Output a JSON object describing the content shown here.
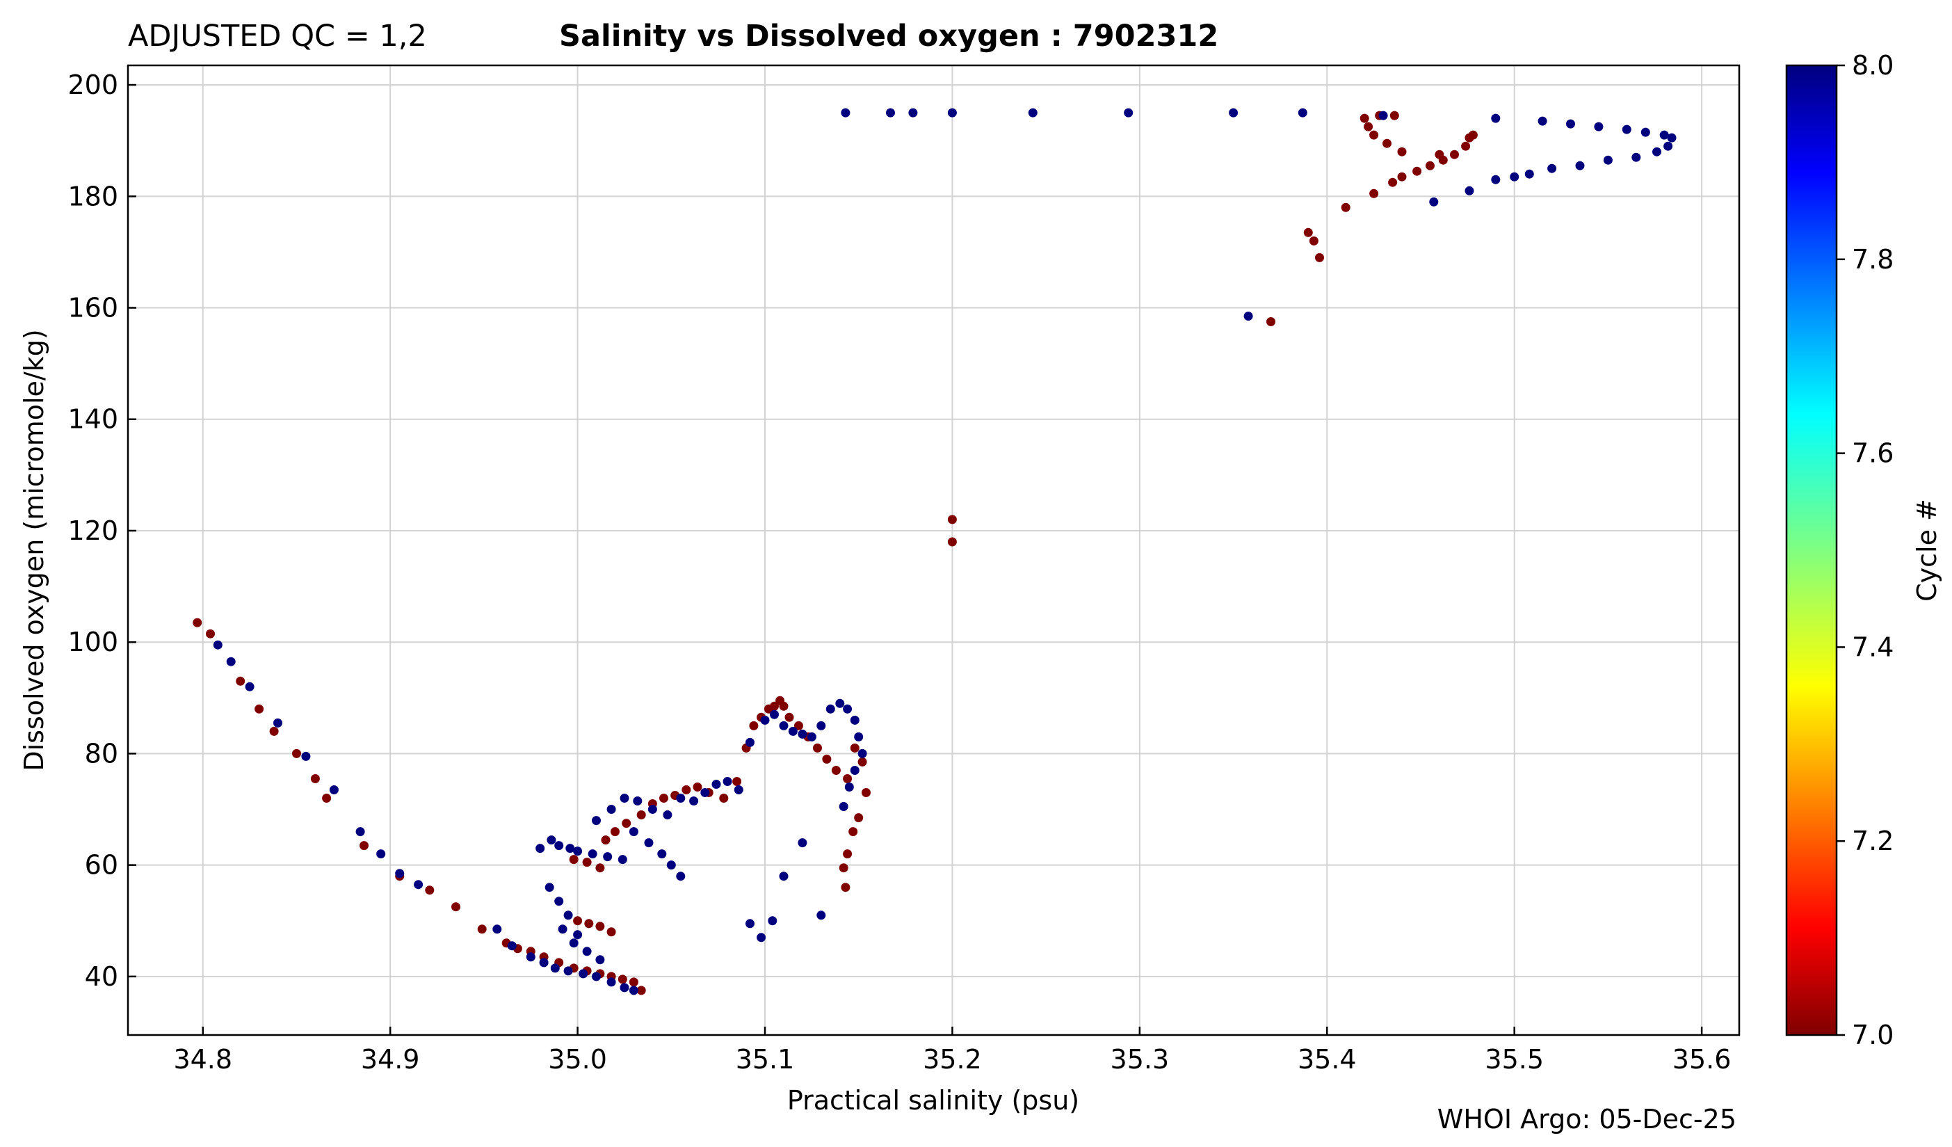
{
  "header": {
    "qc_label": "ADJUSTED QC = 1,2",
    "title": "Salinity vs Dissolved oxygen : 7902312"
  },
  "footer": {
    "credit": "WHOI Argo: 05-Dec-25"
  },
  "colors": {
    "low": "#800000",
    "high": "#00007f",
    "grid": "#d3d3d3"
  },
  "chart_data": {
    "type": "scatter",
    "title": "Salinity vs Dissolved oxygen : 7902312",
    "xlabel": "Practical salinity  (psu)",
    "ylabel": "Dissolved oxygen  (micromole/kg)",
    "xlim": [
      34.76,
      35.62
    ],
    "ylim": [
      29.5,
      203.5
    ],
    "xticks": [
      34.8,
      34.9,
      35.0,
      35.1,
      35.2,
      35.3,
      35.4,
      35.5,
      35.6
    ],
    "xtick_labels": [
      "34.8",
      "34.9",
      "35.0",
      "35.1",
      "35.2",
      "35.3",
      "35.4",
      "35.5",
      "35.6"
    ],
    "yticks": [
      40,
      60,
      80,
      100,
      120,
      140,
      160,
      180,
      200
    ],
    "ytick_labels": [
      "40",
      "60",
      "80",
      "100",
      "120",
      "140",
      "160",
      "180",
      "200"
    ],
    "grid": true,
    "colorbar": {
      "label": "Cycle #",
      "range": [
        7.0,
        8.0
      ],
      "ticks": [
        7.0,
        7.2,
        7.4,
        7.6,
        7.8,
        8.0
      ],
      "tick_labels": [
        "7.0",
        "7.2",
        "7.4",
        "7.6",
        "7.8",
        "8.0"
      ],
      "colormap": "jet"
    },
    "series": [
      {
        "name": "Cycle 7",
        "cycle": 7,
        "x": [
          34.797,
          34.804,
          34.82,
          34.83,
          34.838,
          34.85,
          34.86,
          34.866,
          34.886,
          34.905,
          34.921,
          34.935,
          34.949,
          34.962,
          34.968,
          34.975,
          34.982,
          34.99,
          34.998,
          35.005,
          35.012,
          35.018,
          35.024,
          35.03,
          35.034,
          35.0,
          35.006,
          35.012,
          35.018,
          35.005,
          35.012,
          34.998,
          35.015,
          35.02,
          35.026,
          35.034,
          35.04,
          35.046,
          35.052,
          35.058,
          35.064,
          35.07,
          35.078,
          35.085,
          35.09,
          35.094,
          35.098,
          35.102,
          35.105,
          35.108,
          35.11,
          35.113,
          35.118,
          35.123,
          35.128,
          35.133,
          35.138,
          35.144,
          35.148,
          35.152,
          35.154,
          35.15,
          35.147,
          35.144,
          35.142,
          35.143,
          35.2,
          35.2,
          35.37,
          35.39,
          35.393,
          35.396,
          35.41,
          35.425,
          35.435,
          35.44,
          35.448,
          35.455,
          35.462,
          35.468,
          35.474,
          35.476,
          35.478,
          35.46,
          35.44,
          35.432,
          35.425,
          35.422,
          35.42,
          35.428,
          35.436
        ],
        "y": [
          103.5,
          101.5,
          93,
          88,
          84,
          80,
          75.5,
          72,
          63.5,
          58,
          55.5,
          52.5,
          48.5,
          46,
          45,
          44.5,
          43.5,
          42.5,
          41.5,
          41,
          40.5,
          40,
          39.5,
          39,
          37.5,
          50,
          49.5,
          49,
          48,
          60.5,
          59.5,
          61,
          64.5,
          66,
          67.5,
          69,
          71,
          72,
          72.5,
          73.5,
          74,
          73,
          72,
          75,
          81,
          85,
          86.5,
          88,
          88.5,
          89.5,
          88.5,
          86.5,
          85,
          83,
          81,
          79,
          77,
          75.5,
          81,
          78.5,
          73,
          68.5,
          66,
          62,
          59.5,
          56,
          122,
          118,
          157.5,
          173.5,
          172,
          169,
          178,
          180.5,
          182.5,
          183.5,
          184.5,
          185.5,
          186.5,
          187.5,
          189,
          190.5,
          191,
          187.5,
          188,
          189.5,
          191,
          192.5,
          194,
          194.5,
          194.5
        ],
        "color": "#800000"
      },
      {
        "name": "Cycle 8",
        "cycle": 8,
        "x": [
          34.808,
          34.815,
          34.825,
          34.84,
          34.855,
          34.87,
          34.884,
          34.895,
          34.905,
          34.915,
          34.957,
          34.965,
          34.975,
          34.982,
          34.988,
          34.995,
          35.003,
          35.01,
          35.018,
          35.025,
          35.03,
          34.985,
          34.99,
          34.995,
          35.0,
          34.992,
          34.998,
          35.005,
          35.012,
          34.98,
          34.986,
          34.99,
          34.996,
          35.0,
          35.008,
          35.016,
          35.024,
          35.01,
          35.018,
          35.025,
          35.032,
          35.04,
          35.048,
          35.055,
          35.062,
          35.068,
          35.074,
          35.08,
          35.086,
          35.03,
          35.038,
          35.045,
          35.05,
          35.055,
          35.092,
          35.1,
          35.105,
          35.11,
          35.115,
          35.12,
          35.125,
          35.13,
          35.135,
          35.14,
          35.144,
          35.148,
          35.15,
          35.152,
          35.148,
          35.145,
          35.12,
          35.11,
          35.104,
          35.098,
          35.092,
          35.13,
          35.142,
          35.143,
          35.167,
          35.179,
          35.2,
          35.243,
          35.294,
          35.35,
          35.387,
          35.358,
          35.43,
          35.457,
          35.476,
          35.49,
          35.5,
          35.515,
          35.53,
          35.545,
          35.56,
          35.57,
          35.58,
          35.584,
          35.582,
          35.576,
          35.565,
          35.55,
          35.535,
          35.52,
          35.508,
          35.49
        ],
        "y": [
          99.5,
          96.5,
          92,
          85.5,
          79.5,
          73.5,
          66,
          62,
          58.5,
          56.5,
          48.5,
          45.5,
          43.5,
          42.5,
          41.5,
          41,
          40.5,
          40,
          39,
          38,
          37.5,
          56,
          53.5,
          51,
          47.5,
          48.5,
          46,
          44.5,
          43,
          63,
          64.5,
          63.5,
          63,
          62.5,
          62,
          61.5,
          61,
          68,
          70,
          72,
          71.5,
          70,
          69,
          72,
          71.5,
          73,
          74.5,
          75,
          73.5,
          66,
          64,
          62,
          60,
          58,
          82,
          86,
          87,
          85,
          84,
          83.5,
          83,
          85,
          88,
          89,
          88,
          86,
          83,
          80,
          77,
          74,
          64,
          58,
          50,
          47,
          49.5,
          51,
          70.5,
          195,
          195,
          195,
          195,
          195,
          195,
          195,
          195,
          158.5,
          194.5,
          179,
          181,
          194,
          183.5,
          193.5,
          193,
          192.5,
          192,
          191.5,
          191,
          190.5,
          189,
          188,
          187,
          186.5,
          185.5,
          185,
          184,
          183
        ],
        "color": "#00007f"
      }
    ]
  }
}
